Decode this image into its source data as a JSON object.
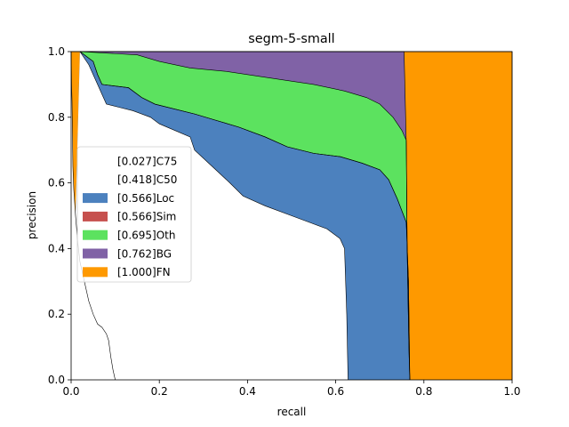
{
  "chart_data": {
    "type": "area",
    "title": "segm-5-small",
    "xlabel": "recall",
    "ylabel": "precision",
    "xlim": [
      0,
      1
    ],
    "ylim": [
      0,
      1
    ],
    "xticks": [
      "0.0",
      "0.2",
      "0.4",
      "0.6",
      "0.8",
      "1.0"
    ],
    "yticks": [
      "0.0",
      "0.2",
      "0.4",
      "0.6",
      "0.8",
      "1.0"
    ],
    "grid": false,
    "legend_position": "center-left",
    "series": [
      {
        "name": "[0.027]C75",
        "color": "#ffffff",
        "points": [
          [
            0,
            1
          ],
          [
            0.001,
            0.9
          ],
          [
            0.002,
            0.85
          ],
          [
            0.003,
            0.75
          ],
          [
            0.004,
            0.65
          ],
          [
            0.006,
            0.58
          ],
          [
            0.01,
            0.5
          ],
          [
            0.015,
            0.42
          ],
          [
            0.02,
            0.36
          ],
          [
            0.03,
            0.3
          ],
          [
            0.04,
            0.24
          ],
          [
            0.05,
            0.2
          ],
          [
            0.06,
            0.17
          ],
          [
            0.07,
            0.16
          ],
          [
            0.08,
            0.14
          ],
          [
            0.085,
            0.12
          ],
          [
            0.09,
            0.07
          ],
          [
            0.095,
            0.03
          ],
          [
            0.1,
            0
          ]
        ]
      },
      {
        "name": "[0.418]C50",
        "color": "#ffffff",
        "points": [
          [
            0.02,
            1
          ],
          [
            0.04,
            0.96
          ],
          [
            0.05,
            0.93
          ],
          [
            0.06,
            0.9
          ],
          [
            0.07,
            0.87
          ],
          [
            0.08,
            0.84
          ],
          [
            0.11,
            0.83
          ],
          [
            0.14,
            0.82
          ],
          [
            0.18,
            0.8
          ],
          [
            0.2,
            0.78
          ],
          [
            0.27,
            0.74
          ],
          [
            0.28,
            0.7
          ],
          [
            0.32,
            0.65
          ],
          [
            0.36,
            0.6
          ],
          [
            0.39,
            0.56
          ],
          [
            0.44,
            0.53
          ],
          [
            0.5,
            0.5
          ],
          [
            0.54,
            0.48
          ],
          [
            0.58,
            0.46
          ],
          [
            0.61,
            0.43
          ],
          [
            0.62,
            0.4
          ],
          [
            0.625,
            0.2
          ],
          [
            0.628,
            0
          ]
        ]
      },
      {
        "name": "[0.566]Loc",
        "color": "#4c81be",
        "points": [
          [
            0.02,
            1
          ],
          [
            0.05,
            0.97
          ],
          [
            0.06,
            0.93
          ],
          [
            0.07,
            0.9
          ],
          [
            0.13,
            0.89
          ],
          [
            0.16,
            0.86
          ],
          [
            0.19,
            0.84
          ],
          [
            0.28,
            0.81
          ],
          [
            0.33,
            0.79
          ],
          [
            0.38,
            0.77
          ],
          [
            0.44,
            0.74
          ],
          [
            0.49,
            0.71
          ],
          [
            0.55,
            0.69
          ],
          [
            0.61,
            0.68
          ],
          [
            0.66,
            0.66
          ],
          [
            0.7,
            0.64
          ],
          [
            0.72,
            0.61
          ],
          [
            0.74,
            0.55
          ],
          [
            0.76,
            0.48
          ],
          [
            0.765,
            0.3
          ],
          [
            0.768,
            0
          ]
        ]
      },
      {
        "name": "[0.566]Sim",
        "color": "#c6504e",
        "points": [
          [
            0.02,
            1
          ],
          [
            0.05,
            0.97
          ],
          [
            0.06,
            0.93
          ],
          [
            0.07,
            0.9
          ],
          [
            0.13,
            0.89
          ],
          [
            0.16,
            0.86
          ],
          [
            0.19,
            0.84
          ],
          [
            0.28,
            0.81
          ],
          [
            0.33,
            0.79
          ],
          [
            0.38,
            0.77
          ],
          [
            0.44,
            0.74
          ],
          [
            0.49,
            0.71
          ],
          [
            0.55,
            0.69
          ],
          [
            0.61,
            0.68
          ],
          [
            0.66,
            0.66
          ],
          [
            0.7,
            0.64
          ],
          [
            0.72,
            0.61
          ],
          [
            0.74,
            0.55
          ],
          [
            0.76,
            0.48
          ],
          [
            0.765,
            0.3
          ],
          [
            0.768,
            0
          ]
        ]
      },
      {
        "name": "[0.695]Oth",
        "color": "#5ce25f",
        "points": [
          [
            0.02,
            1
          ],
          [
            0.15,
            0.99
          ],
          [
            0.2,
            0.97
          ],
          [
            0.27,
            0.95
          ],
          [
            0.35,
            0.94
          ],
          [
            0.45,
            0.92
          ],
          [
            0.55,
            0.9
          ],
          [
            0.62,
            0.88
          ],
          [
            0.67,
            0.86
          ],
          [
            0.7,
            0.84
          ],
          [
            0.73,
            0.8
          ],
          [
            0.75,
            0.76
          ],
          [
            0.76,
            0.73
          ],
          [
            0.762,
            0.4
          ],
          [
            0.766,
            0.1
          ],
          [
            0.768,
            0
          ]
        ]
      },
      {
        "name": "[0.762]BG",
        "color": "#8062a6",
        "points": [
          [
            0.02,
            1
          ],
          [
            0.755,
            1
          ],
          [
            0.76,
            0.72
          ],
          [
            0.762,
            0.4
          ],
          [
            0.766,
            0.1
          ],
          [
            0.768,
            0
          ]
        ]
      },
      {
        "name": "[1.000]FN",
        "color": "#fe9900",
        "points": [
          [
            0,
            1
          ],
          [
            1,
            1
          ],
          [
            1,
            0
          ]
        ]
      }
    ]
  }
}
